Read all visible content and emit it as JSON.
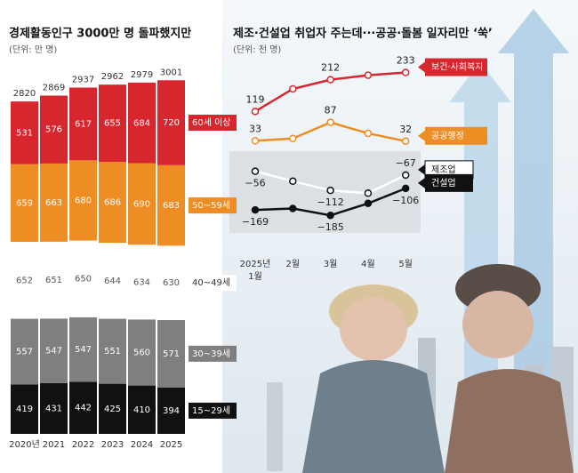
{
  "chart_data": [
    {
      "type": "stacked-bar",
      "title": "경제활동인구 3000만 명 돌파했지만",
      "subtitle": "(단위: 만 명)",
      "categories": [
        "2020년",
        "2021",
        "2022",
        "2023",
        "2024",
        "2025"
      ],
      "series": [
        {
          "name": "15~29세",
          "color": "#111111",
          "values": [
            419,
            431,
            442,
            425,
            410,
            394
          ]
        },
        {
          "name": "30~39세",
          "color": "#7f7f7f",
          "values": [
            557,
            547,
            547,
            551,
            560,
            571
          ]
        },
        {
          "name": "40~49세",
          "color": "#ffffff",
          "values": [
            652,
            651,
            650,
            644,
            634,
            630
          ]
        },
        {
          "name": "50~59세",
          "color": "#ef8d25",
          "values": [
            659,
            663,
            680,
            686,
            690,
            683
          ]
        },
        {
          "name": "60세 이상",
          "color": "#d8262e",
          "values": [
            531,
            576,
            617,
            655,
            684,
            720
          ]
        }
      ],
      "totals": [
        2820,
        2869,
        2937,
        2962,
        2979,
        3001
      ],
      "ylim": [
        0,
        3000
      ]
    },
    {
      "type": "line",
      "title": "제조·건설업 취업자 주는데···공공·돌봄 일자리만 ‘쑥’",
      "subtitle": "(단위: 천 명)",
      "categories": [
        "2025년 1월",
        "2월",
        "3월",
        "4월",
        "5월"
      ],
      "series": [
        {
          "name": "보건·사회복지",
          "color": "#d8262e",
          "values": [
            119,
            185,
            212,
            225,
            233
          ],
          "value_labels": [
            "119",
            null,
            "212",
            null,
            "233"
          ]
        },
        {
          "name": "공공행정",
          "color": "#ef8d25",
          "values": [
            33,
            40,
            87,
            55,
            32
          ],
          "value_labels": [
            "33",
            null,
            "87",
            null,
            "32"
          ]
        },
        {
          "name": "제조업",
          "color": "#ffffff",
          "values": [
            -56,
            -85,
            -112,
            -120,
            -67
          ],
          "value_labels": [
            "−56",
            null,
            "−112",
            null,
            "−67"
          ]
        },
        {
          "name": "건설업",
          "color": "#111111",
          "values": [
            -169,
            -165,
            -185,
            -150,
            -106
          ],
          "value_labels": [
            "−169",
            null,
            "−185",
            null,
            "−106"
          ]
        }
      ],
      "ylim": [
        -200,
        250
      ]
    }
  ]
}
